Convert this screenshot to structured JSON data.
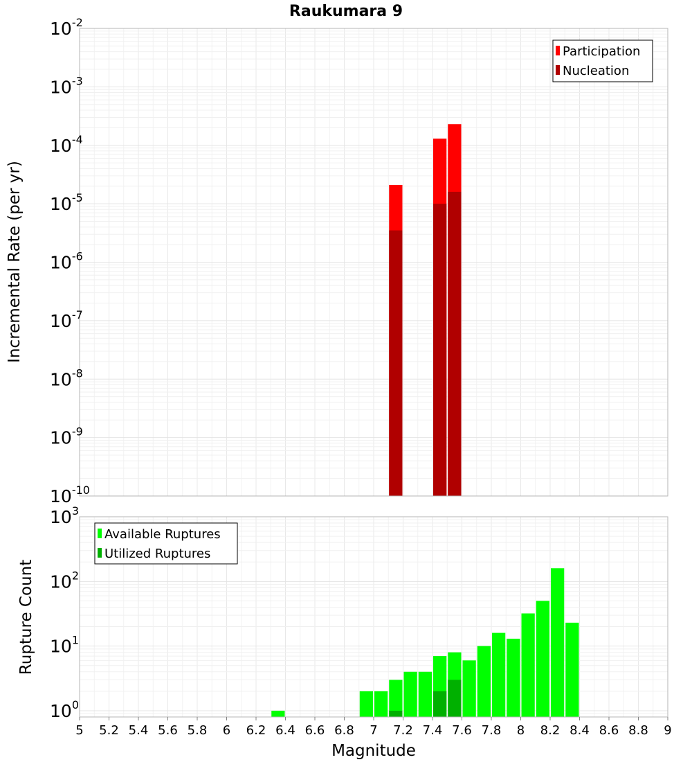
{
  "chart_data": [
    {
      "type": "bar",
      "title": "Raukumara 9",
      "xlabel": "",
      "ylabel": "Incremental Rate (per yr)",
      "xlim": [
        5,
        9
      ],
      "ylim": [
        1e-10,
        0.01
      ],
      "yscale": "log",
      "ytick_exponents": [
        -10,
        -9,
        -8,
        -7,
        -6,
        -5,
        -4,
        -3,
        -2
      ],
      "grid": true,
      "legend_position": "top-right",
      "bar_width": 0.1,
      "series": [
        {
          "name": "Participation",
          "color": "#ff0000",
          "x": [
            7.15,
            7.45,
            7.55
          ],
          "values": [
            2.1e-05,
            0.00013,
            0.00023
          ]
        },
        {
          "name": "Nucleation",
          "color": "#b00000",
          "x": [
            7.15,
            7.45,
            7.55
          ],
          "values": [
            3.5e-06,
            1e-05,
            1.6e-05
          ]
        }
      ]
    },
    {
      "type": "bar",
      "title": "",
      "xlabel": "Magnitude",
      "ylabel": "Rupture Count",
      "xlim": [
        5,
        9
      ],
      "ylim": [
        0.8,
        1000
      ],
      "yscale": "log",
      "ytick_exponents": [
        0,
        1,
        2,
        3
      ],
      "xticks": [
        "5",
        "5.2",
        "5.4",
        "5.6",
        "5.8",
        "6",
        "6.2",
        "6.4",
        "6.6",
        "6.8",
        "7",
        "7.2",
        "7.4",
        "7.6",
        "7.8",
        "8",
        "8.2",
        "8.4",
        "8.6",
        "8.8",
        "9"
      ],
      "grid": true,
      "legend_position": "top-left",
      "bar_width": 0.1,
      "series": [
        {
          "name": "Available Ruptures",
          "color": "#00ff00",
          "x": [
            6.35,
            6.95,
            7.05,
            7.15,
            7.25,
            7.35,
            7.45,
            7.55,
            7.65,
            7.75,
            7.85,
            7.95,
            8.05,
            8.15,
            8.25,
            8.35
          ],
          "values": [
            1,
            2,
            2,
            3,
            4,
            4,
            7,
            8,
            6,
            10,
            16,
            13,
            32,
            50,
            160,
            23
          ]
        },
        {
          "name": "Utilized Ruptures",
          "color": "#00b000",
          "x": [
            7.15,
            7.45,
            7.55
          ],
          "values": [
            1,
            2,
            3
          ]
        }
      ]
    }
  ]
}
